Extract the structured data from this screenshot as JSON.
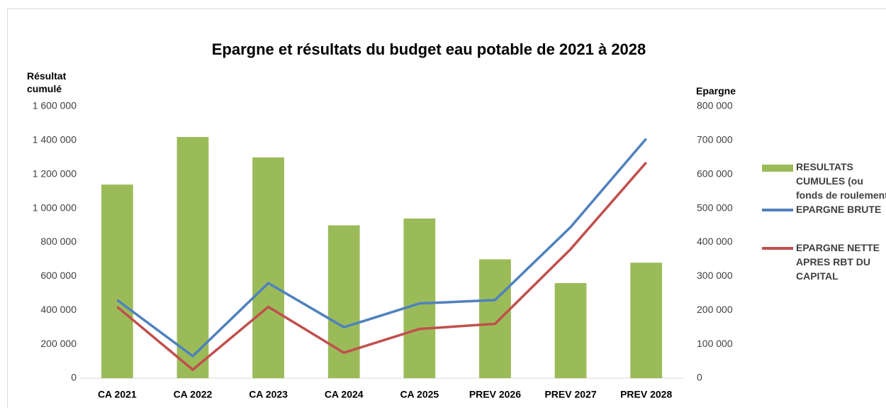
{
  "chart_data": {
    "type": "bar-line",
    "title": "Epargne et résultats du budget eau potable de 2021 à 2028",
    "ylabel": "Résultat cumulé",
    "y2label": "Epargne",
    "categories": [
      "CA 2021",
      "CA 2022",
      "CA 2023",
      "CA 2024",
      "CA 2025",
      "PREV 2026",
      "PREV 2027",
      "PREV 2028"
    ],
    "series": [
      {
        "name": "RESULTATS CUMULES (ou fonds de roulement)",
        "type": "bar",
        "color": "#9bbb59",
        "axis": "y",
        "values": [
          1140000,
          1420000,
          1300000,
          900000,
          940000,
          700000,
          560000,
          680000
        ]
      },
      {
        "name": "EPARGNE BRUTE",
        "type": "line",
        "color": "#4f81bd",
        "axis": "y2",
        "values": [
          230000,
          65000,
          280000,
          150000,
          220000,
          230000,
          445000,
          705000
        ]
      },
      {
        "name": "EPARGNE NETTE APRES RBT DU CAPITAL",
        "type": "line",
        "color": "#c0504d",
        "axis": "y2",
        "values": [
          210000,
          25000,
          210000,
          75000,
          145000,
          160000,
          380000,
          635000
        ]
      }
    ],
    "ylim": [
      0,
      1600000
    ],
    "yticks": [
      0,
      {
        "value": 200000,
        "label": "200 000"
      },
      {
        "value": 400000,
        "label": "400 000"
      },
      {
        "value": 600000,
        "label": "600 000"
      },
      {
        "value": 800000,
        "label": "800 000"
      },
      {
        "value": 1000000,
        "label": "1 000 000"
      },
      {
        "value": 1200000,
        "label": "1 200 000"
      },
      {
        "value": 1400000,
        "label": "1 400 000"
      },
      {
        "value": 1600000,
        "label": "1 600 000"
      }
    ],
    "y2lim": [
      0,
      800000
    ],
    "y2ticks": [
      0,
      {
        "value": 100000,
        "label": "100 000"
      },
      {
        "value": 200000,
        "label": "200 000"
      },
      {
        "value": 300000,
        "label": "300 000"
      },
      {
        "value": 400000,
        "label": "400 000"
      },
      {
        "value": 500000,
        "label": "500 000"
      },
      {
        "value": 600000,
        "label": "600 000"
      },
      {
        "value": 700000,
        "label": "700 000"
      },
      {
        "value": 800000,
        "label": "800 000"
      }
    ],
    "grid": false,
    "legend": "right"
  }
}
